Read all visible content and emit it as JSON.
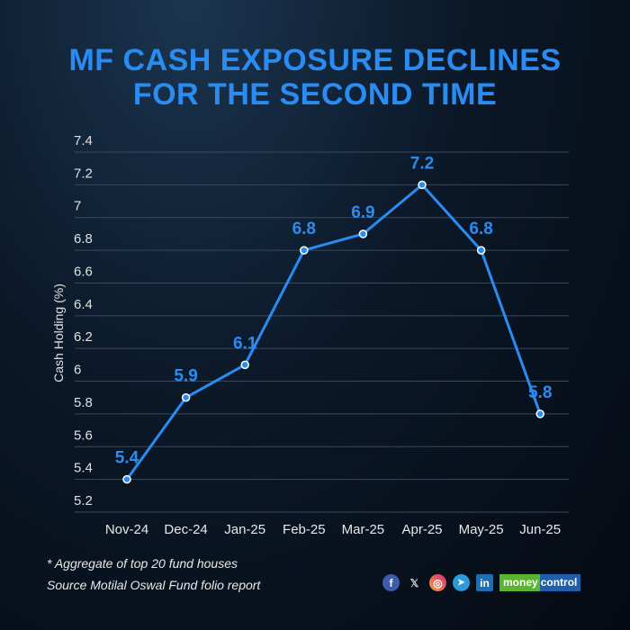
{
  "title_lines": [
    "MF CASH EXPOSURE DECLINES",
    "FOR THE SECOND TIME"
  ],
  "chart_data": {
    "type": "line",
    "title": "MF CASH EXPOSURE DECLINES FOR THE SECOND TIME",
    "xlabel": "",
    "ylabel": "Cash Holding (%)",
    "categories": [
      "Nov-24",
      "Dec-24",
      "Jan-25",
      "Feb-25",
      "Mar-25",
      "Apr-25",
      "May-25",
      "Jun-25"
    ],
    "values": [
      5.4,
      5.9,
      6.1,
      6.8,
      6.9,
      7.2,
      6.8,
      5.8
    ],
    "data_labels": [
      "5.4",
      "5.9",
      "6.1",
      "6.8",
      "6.9",
      "7.2",
      "6.8",
      "5.8"
    ],
    "yticks": [
      "5.2",
      "5.4",
      "5.6",
      "5.8",
      "6",
      "6.2",
      "6.4",
      "6.6",
      "6.8",
      "7",
      "7.2",
      "7.4"
    ],
    "ylim": [
      5.2,
      7.4
    ],
    "grid": true,
    "line_color": "#2a8cf0"
  },
  "footer": {
    "note": "* Aggregate of top 20 fund houses",
    "source": "Source Motilal Oswal Fund folio report"
  },
  "social": {
    "facebook": "f",
    "x": "𝕏",
    "linkedin": "in",
    "brand_a": "money",
    "brand_b": "control"
  }
}
